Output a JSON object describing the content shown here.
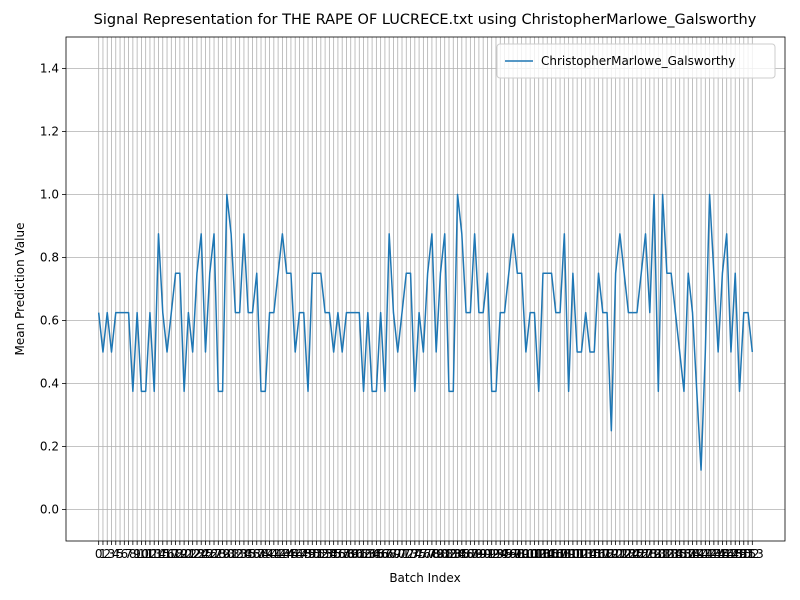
{
  "chart_data": {
    "type": "line",
    "title": "Signal Representation for THE RAPE OF LUCRECE.txt using ChristopherMarlowe_Galsworthy",
    "x_label": "Batch Index",
    "y_label": "Mean Prediction Value",
    "x": [
      0,
      1,
      2,
      3,
      4,
      5,
      6,
      7,
      8,
      9,
      10,
      11,
      12,
      13,
      14,
      15,
      16,
      17,
      18,
      19,
      20,
      21,
      22,
      23,
      24,
      25,
      26,
      27,
      28,
      29,
      30,
      31,
      32,
      33,
      34,
      35,
      36,
      37,
      38,
      39,
      40,
      41,
      42,
      43,
      44,
      45,
      46,
      47,
      48,
      49,
      50,
      51,
      52,
      53,
      54,
      55,
      56,
      57,
      58,
      59,
      60,
      61,
      62,
      63,
      64,
      65,
      66,
      67,
      68,
      69,
      70,
      71,
      72,
      73,
      74,
      75,
      76,
      77,
      78,
      79,
      80,
      81,
      82,
      83,
      84,
      85,
      86,
      87,
      88,
      89,
      90,
      91,
      92,
      93,
      94,
      95,
      96,
      97,
      98,
      99,
      100,
      101,
      102,
      103,
      104,
      105,
      106,
      107,
      108,
      109,
      110,
      111,
      112,
      113,
      114,
      115,
      116,
      117,
      118,
      119,
      120,
      121,
      122,
      123,
      124,
      125,
      126,
      127,
      128,
      129,
      130,
      131,
      132,
      133,
      134,
      135,
      136,
      137,
      138,
      139,
      140,
      141,
      142,
      143,
      144,
      145,
      146,
      147,
      148,
      149,
      150,
      151,
      152,
      153
    ],
    "series": [
      {
        "name": "ChristopherMarlowe_Galsworthy",
        "color": "#1f77b4",
        "values": [
          0.625,
          0.5,
          0.625,
          0.5,
          0.625,
          0.625,
          0.625,
          0.625,
          0.375,
          0.625,
          0.375,
          0.375,
          0.625,
          0.375,
          0.875,
          0.625,
          0.5,
          0.625,
          0.75,
          0.75,
          0.375,
          0.625,
          0.5,
          0.75,
          0.875,
          0.5,
          0.75,
          0.875,
          0.375,
          0.375,
          1.0,
          0.875,
          0.625,
          0.625,
          0.875,
          0.625,
          0.625,
          0.75,
          0.375,
          0.375,
          0.625,
          0.625,
          0.75,
          0.875,
          0.75,
          0.75,
          0.5,
          0.625,
          0.625,
          0.375,
          0.75,
          0.75,
          0.75,
          0.625,
          0.625,
          0.5,
          0.625,
          0.5,
          0.625,
          0.625,
          0.625,
          0.625,
          0.375,
          0.625,
          0.375,
          0.375,
          0.625,
          0.375,
          0.875,
          0.625,
          0.5,
          0.625,
          0.75,
          0.75,
          0.375,
          0.625,
          0.5,
          0.75,
          0.875,
          0.5,
          0.75,
          0.875,
          0.375,
          0.375,
          1.0,
          0.875,
          0.625,
          0.625,
          0.875,
          0.625,
          0.625,
          0.75,
          0.375,
          0.375,
          0.625,
          0.625,
          0.75,
          0.875,
          0.75,
          0.75,
          0.5,
          0.625,
          0.625,
          0.375,
          0.75,
          0.75,
          0.75,
          0.625,
          0.625,
          0.875,
          0.375,
          0.75,
          0.5,
          0.5,
          0.625,
          0.5,
          0.5,
          0.75,
          0.625,
          0.625,
          0.25,
          0.75,
          0.875,
          0.75,
          0.625,
          0.625,
          0.625,
          0.75,
          0.875,
          0.625,
          1.0,
          0.375,
          1.0,
          0.75,
          0.75,
          0.625,
          0.5,
          0.375,
          0.75,
          0.625,
          0.375,
          0.125,
          0.5,
          1.0,
          0.75,
          0.5,
          0.75,
          0.875,
          0.5,
          0.75,
          0.375,
          0.625,
          0.625,
          0.5
        ]
      }
    ],
    "xlim": [
      -7.65,
      160.65
    ],
    "ylim": [
      -0.1,
      1.5
    ],
    "xticks": [
      0,
      1,
      2,
      3,
      4,
      5,
      6,
      7,
      8,
      9,
      10,
      11,
      12,
      13,
      14,
      15,
      16,
      17,
      18,
      19,
      20,
      21,
      22,
      23,
      24,
      25,
      26,
      27,
      28,
      29,
      30,
      31,
      32,
      33,
      34,
      35,
      36,
      37,
      38,
      39,
      40,
      41,
      42,
      43,
      44,
      45,
      46,
      47,
      48,
      49,
      50,
      51,
      52,
      53,
      54,
      55,
      56,
      57,
      58,
      59,
      60,
      61,
      62,
      63,
      64,
      65,
      66,
      67,
      68,
      69,
      70,
      71,
      72,
      73,
      74,
      75,
      76,
      77,
      78,
      79,
      80,
      81,
      82,
      83,
      84,
      85,
      86,
      87,
      88,
      89,
      90,
      91,
      92,
      93,
      94,
      95,
      96,
      97,
      98,
      99,
      100,
      101,
      102,
      103,
      104,
      105,
      106,
      107,
      108,
      109,
      110,
      111,
      112,
      113,
      114,
      115,
      116,
      117,
      118,
      119,
      120,
      121,
      122,
      123,
      124,
      125,
      126,
      127,
      128,
      129,
      130,
      131,
      132,
      133,
      134,
      135,
      136,
      137,
      138,
      139,
      140,
      141,
      142,
      143,
      144,
      145,
      146,
      147,
      148,
      149,
      150,
      151,
      152,
      153
    ],
    "yticks": [
      {
        "value": 0,
        "label": "0.0"
      },
      0.2,
      0.4,
      0.6,
      0.8,
      {
        "value": 1,
        "label": "1.0"
      },
      1.2,
      1.4
    ],
    "grid": true,
    "legend": "upper right"
  }
}
